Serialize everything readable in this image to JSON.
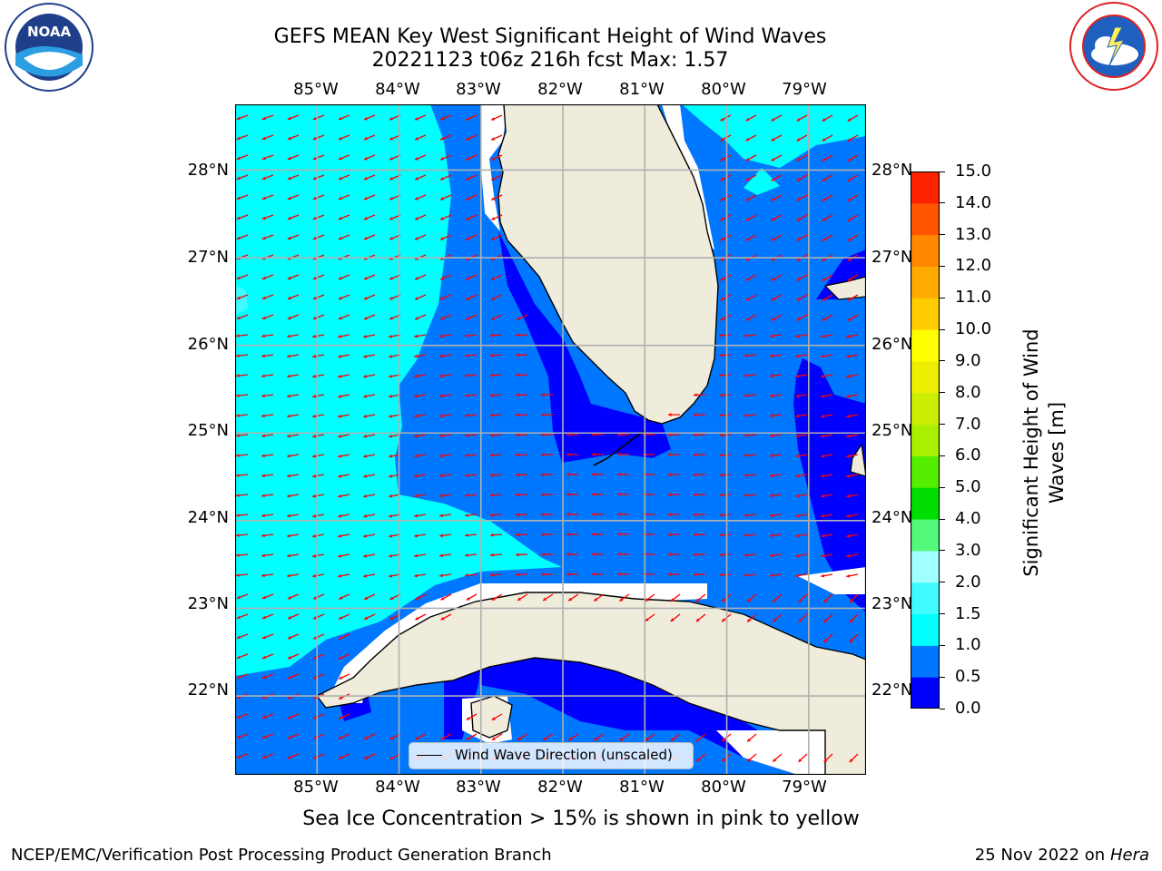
{
  "title": {
    "line1": "GEFS MEAN Key West Significant Height of Wind Waves",
    "line2": "20221123 t06z 216h fcst   Max: 1.57"
  },
  "logos": {
    "noaa": {
      "text": "NOAA",
      "ring_text": "NATIONAL OCEANIC AND ATMOSPHERIC ADMINISTRATION · U.S. DEPARTMENT OF COMMERCE"
    },
    "nws": {
      "ring_text": "NATIONAL WEATHER SERVICE"
    }
  },
  "map": {
    "lon_ticks": [
      "85°W",
      "84°W",
      "83°W",
      "82°W",
      "81°W",
      "80°W",
      "79°W"
    ],
    "lat_ticks": [
      "28°N",
      "27°N",
      "26°N",
      "25°N",
      "24°N",
      "23°N",
      "22°N"
    ],
    "lon_range": [
      -86.0,
      -78.3
    ],
    "lat_range": [
      21.1,
      28.75
    ],
    "gridlines": true,
    "legend_label": "Wind Wave Direction (unscaled)",
    "arrow_color": "#ff0000",
    "land_color": "#efecdc",
    "legend_position": "lower-center"
  },
  "colorbar": {
    "label": "Significant Height of Wind Waves [m]",
    "label_line1": "Significant Height of Wind",
    "label_line2": "Waves [m]",
    "ticks": [
      "0.0",
      "0.5",
      "1.0",
      "1.5",
      "2.0",
      "3.0",
      "4.0",
      "5.0",
      "6.0",
      "7.0",
      "8.0",
      "9.0",
      "10.0",
      "11.0",
      "12.0",
      "13.0",
      "14.0",
      "15.0"
    ],
    "colors": [
      "#0000ff",
      "#0077ff",
      "#00ffff",
      "#3ffbff",
      "#a0ffff",
      "#55f97a",
      "#00dd00",
      "#55ee00",
      "#aaee00",
      "#ccee00",
      "#eeee00",
      "#ffff00",
      "#ffcc00",
      "#ffaa00",
      "#ff8800",
      "#ff5500",
      "#ff2200"
    ]
  },
  "footnote": "Sea Ice Concentration > 15% is shown in pink to yellow",
  "credit_left": "NCEP/EMC/Verification Post Processing Product Generation Branch",
  "credit_right_date": "25 Nov 2022 on",
  "credit_right_host": "Hera"
}
